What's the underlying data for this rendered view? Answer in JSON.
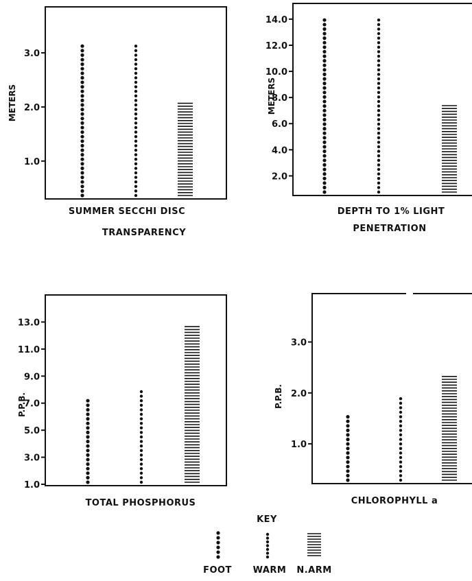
{
  "chart_data": [
    {
      "type": "bar",
      "categories": [
        "FOOT",
        "WARM",
        "N.ARM"
      ],
      "series": [
        {
          "values": [
            3.2,
            3.2,
            2.1
          ]
        }
      ],
      "ylabel": "METERS",
      "xlabel_line1": "SUMMER   SECCHI  DISC",
      "xlabel_line2": "TRANSPARENCY",
      "ticks": [
        "1.0",
        "2.0",
        "3.0"
      ],
      "tick_values": [
        1.0,
        2.0,
        3.0
      ],
      "ylim": [
        0.3,
        3.85
      ]
    },
    {
      "type": "bar",
      "categories": [
        "FOOT",
        "WARM",
        "N.ARM"
      ],
      "series": [
        {
          "values": [
            14.2,
            14.1,
            7.5
          ]
        }
      ],
      "ylabel": "METERS",
      "xlabel_line1": "DEPTH TO 1% LIGHT",
      "xlabel_line2": "PENETRATION",
      "ticks": [
        "2.0",
        "4.0",
        "6.0",
        "8.0",
        "10.0",
        "12.0",
        "14.0"
      ],
      "tick_values": [
        2,
        4,
        6,
        8,
        10,
        12,
        14
      ],
      "ylim": [
        0.5,
        15.2
      ]
    },
    {
      "type": "bar",
      "categories": [
        "FOOT",
        "WARM",
        "N.ARM"
      ],
      "series": [
        {
          "values": [
            7.5,
            8.0,
            12.7
          ]
        }
      ],
      "ylabel": "P.P.B.",
      "xlabel_line1": "TOTAL   PHOSPHORUS",
      "xlabel_line2": "",
      "ticks": [
        "1.0",
        "3.0",
        "5.0",
        "7.0",
        "9.0",
        "11.0",
        "13.0"
      ],
      "tick_values": [
        1,
        3,
        5,
        7,
        9,
        11,
        13
      ],
      "ylim": [
        0.9,
        15.0
      ]
    },
    {
      "type": "bar",
      "categories": [
        "FOOT",
        "WARM",
        "N.ARM"
      ],
      "series": [
        {
          "values": [
            1.55,
            1.9,
            2.35
          ]
        }
      ],
      "ylabel": "P.P.B.",
      "xlabel_line1": "CHLOROPHYLL  a",
      "xlabel_line2": "",
      "ticks": [
        "1.0",
        "2.0",
        "3.0"
      ],
      "tick_values": [
        1,
        2,
        3
      ],
      "ylim": [
        0.22,
        3.95
      ]
    }
  ],
  "key": {
    "title": "KEY",
    "items": [
      {
        "label": "FOOT",
        "pattern": "dots-large"
      },
      {
        "label": "WARM",
        "pattern": "dots"
      },
      {
        "label": "N.ARM",
        "pattern": "hlines"
      }
    ]
  }
}
